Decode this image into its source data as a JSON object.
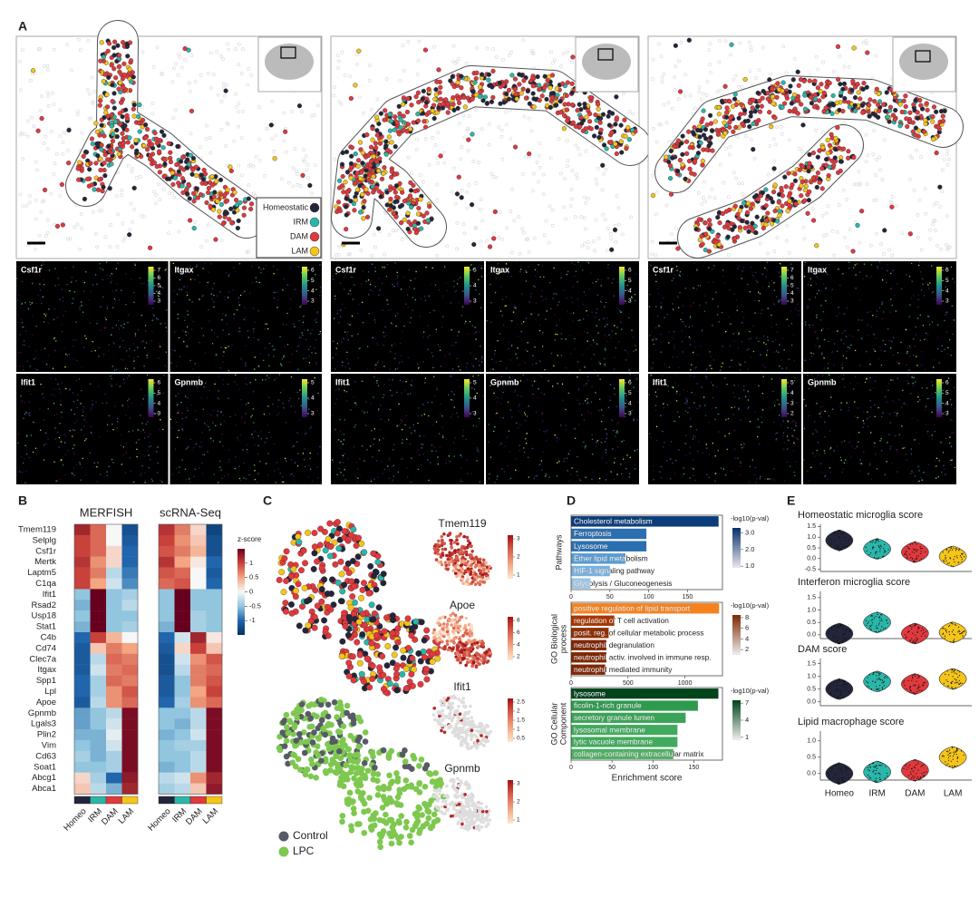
{
  "figure": {
    "panel_labels": [
      "A",
      "B",
      "C",
      "D",
      "E"
    ]
  },
  "panel_a": {
    "legend": [
      {
        "name": "Homeostatic",
        "color": "#23263a"
      },
      {
        "name": "IRM",
        "color": "#2ab7a9"
      },
      {
        "name": "DAM",
        "color": "#e0393e"
      },
      {
        "name": "LAM",
        "color": "#f5c518"
      }
    ],
    "gene_maps": [
      {
        "gene": "Csf1r",
        "ticks": [
          7,
          6,
          5,
          4,
          3
        ]
      },
      {
        "gene": "Itgax",
        "ticks": [
          6,
          5,
          4,
          3
        ]
      },
      {
        "gene": "Ifit1",
        "ticks": [
          6,
          5,
          4,
          3
        ]
      },
      {
        "gene": "Gpnmb",
        "ticks": [
          5,
          4,
          3
        ]
      },
      {
        "gene": "Csf1r",
        "ticks": [
          5,
          4,
          3
        ]
      },
      {
        "gene": "Itgax",
        "ticks": [
          6,
          5,
          4,
          3
        ]
      },
      {
        "gene": "Ifit1",
        "ticks": [
          5,
          4,
          3
        ]
      },
      {
        "gene": "Gpnmb",
        "ticks": [
          6,
          5,
          4,
          3
        ]
      },
      {
        "gene": "Csf1r",
        "ticks": [
          7,
          6,
          5,
          4,
          3
        ]
      },
      {
        "gene": "Itgax",
        "ticks": [
          6,
          5,
          4,
          3
        ]
      },
      {
        "gene": "Ifit1",
        "ticks": [
          5,
          4,
          3,
          2
        ]
      },
      {
        "gene": "Gpnmb",
        "ticks": [
          6,
          5,
          4,
          3
        ]
      }
    ]
  },
  "panel_b": {
    "titles": [
      "MERFISH",
      "scRNA-Seq"
    ],
    "genes": [
      "Tmem119",
      "Selplg",
      "Csf1r",
      "Mertk",
      "Laptm5",
      "C1qa",
      "Ifit1",
      "Rsad2",
      "Usp18",
      "Stat1",
      "C4b",
      "Cd74",
      "Clec7a",
      "Itgax",
      "Spp1",
      "Lpl",
      "Apoe",
      "Gpnmb",
      "Lgals3",
      "Plin2",
      "Vim",
      "Cd63",
      "Soat1",
      "Abcg1",
      "Abca1"
    ],
    "columns": [
      "Homeo",
      "IRM",
      "DAM",
      "LAM"
    ],
    "column_colors": [
      "#23263a",
      "#2ab7a9",
      "#e0393e",
      "#f5c518"
    ],
    "colorbar": {
      "title": "z-score",
      "lim": [
        -1.5,
        1.5
      ],
      "ticks": [
        1,
        0.5,
        0,
        -0.5,
        -1
      ]
    },
    "matrices": [
      [
        [
          1.2,
          0.8,
          0.0,
          -1.2
        ],
        [
          1.0,
          0.8,
          0.0,
          -1.1
        ],
        [
          1.0,
          0.8,
          0.2,
          -1.0
        ],
        [
          1.1,
          0.6,
          0.2,
          -1.0
        ],
        [
          1.0,
          0.7,
          -0.3,
          -0.9
        ],
        [
          1.0,
          0.5,
          -0.2,
          -0.8
        ],
        [
          -0.5,
          1.5,
          -0.5,
          -0.4
        ],
        [
          -0.6,
          1.5,
          -0.5,
          -0.3
        ],
        [
          -0.5,
          1.5,
          -0.5,
          -0.5
        ],
        [
          -0.6,
          1.5,
          -0.5,
          -0.4
        ],
        [
          -1.0,
          1.0,
          0.4,
          0.0
        ],
        [
          -1.1,
          0.3,
          0.7,
          0.5
        ],
        [
          -1.1,
          -0.3,
          0.8,
          0.7
        ],
        [
          -1.1,
          -0.2,
          0.7,
          0.8
        ],
        [
          -1.0,
          -0.4,
          0.8,
          0.7
        ],
        [
          -1.0,
          -0.4,
          0.6,
          0.9
        ],
        [
          -1.1,
          -0.3,
          0.6,
          0.8
        ],
        [
          -0.7,
          -0.5,
          -0.3,
          1.4
        ],
        [
          -0.7,
          -0.5,
          -0.2,
          1.4
        ],
        [
          -0.6,
          -0.6,
          -0.1,
          1.4
        ],
        [
          -0.5,
          -0.6,
          -0.2,
          1.4
        ],
        [
          -0.4,
          -0.6,
          -0.4,
          1.4
        ],
        [
          -0.5,
          -0.5,
          -0.4,
          1.4
        ],
        [
          0.2,
          -0.4,
          -1.0,
          1.3
        ],
        [
          0.3,
          -0.3,
          -0.6,
          1.2
        ]
      ],
      [
        [
          1.1,
          0.7,
          0.2,
          -1.3
        ],
        [
          1.0,
          0.6,
          0.3,
          -1.2
        ],
        [
          0.9,
          0.7,
          0.4,
          -1.2
        ],
        [
          1.1,
          0.5,
          0.1,
          -1.0
        ],
        [
          0.9,
          0.8,
          0.0,
          -1.1
        ],
        [
          0.8,
          0.9,
          0.0,
          -1.0
        ],
        [
          -0.5,
          1.5,
          -0.5,
          -0.5
        ],
        [
          -0.5,
          1.5,
          -0.5,
          -0.5
        ],
        [
          -0.5,
          1.5,
          -0.4,
          -0.5
        ],
        [
          -0.6,
          1.5,
          -0.4,
          -0.5
        ],
        [
          -1.0,
          -0.2,
          1.2,
          0.1
        ],
        [
          -1.1,
          0.2,
          1.0,
          0.3
        ],
        [
          -1.2,
          -0.2,
          0.6,
          0.9
        ],
        [
          -1.2,
          -0.3,
          0.7,
          0.8
        ],
        [
          -1.1,
          -0.5,
          0.7,
          0.9
        ],
        [
          -1.1,
          -0.5,
          0.5,
          1.0
        ],
        [
          -1.0,
          -0.4,
          0.6,
          0.8
        ],
        [
          -0.5,
          -0.5,
          -0.3,
          1.4
        ],
        [
          -0.5,
          -0.6,
          -0.3,
          1.4
        ],
        [
          -0.6,
          -0.5,
          -0.2,
          1.4
        ],
        [
          -0.5,
          -0.4,
          -0.4,
          1.4
        ],
        [
          -0.5,
          -0.5,
          -0.3,
          1.4
        ],
        [
          -0.6,
          -0.5,
          -0.3,
          1.4
        ],
        [
          -0.3,
          -0.2,
          0.6,
          1.2
        ],
        [
          -0.4,
          -0.3,
          0.3,
          1.3
        ]
      ]
    ]
  },
  "panel_c": {
    "legend": [
      {
        "name": "Control",
        "color": "#565b66"
      },
      {
        "name": "LPC",
        "color": "#7ec850"
      }
    ],
    "genes": [
      {
        "name": "Tmem119",
        "ticks": [
          3,
          2,
          1
        ]
      },
      {
        "name": "Apoe",
        "ticks": [
          8,
          6,
          4,
          2
        ]
      },
      {
        "name": "Ifit1",
        "ticks": [
          2.5,
          2,
          1.5,
          1,
          0.5
        ]
      },
      {
        "name": "Gpnmb",
        "ticks": [
          3,
          2,
          1
        ]
      }
    ]
  },
  "chart_data": [
    {
      "type": "bar",
      "orientation": "horizontal",
      "ylabel": [
        "Pathways"
      ],
      "categories": [
        "Cholesterol metabolism",
        "Ferroptosis",
        "Lysosome",
        "Ether lipid metabolism",
        "HIF-1 signaling pathway",
        "Glycolysis / Gluconeogenesis"
      ],
      "values": [
        190,
        97,
        97,
        70,
        50,
        25
      ],
      "colors": [
        "#0b3d7a",
        "#2c6fb0",
        "#2c6fb0",
        "#5a9bd0",
        "#7bb0db",
        "#9cc4e4"
      ],
      "xlim": [
        0,
        195
      ],
      "xticks": [
        0,
        50,
        100,
        150
      ],
      "colorbar": {
        "title": "-log10(p-val)",
        "lim": [
          0.9,
          3.3
        ],
        "colors": [
          "#e8e8ee",
          "#08306b"
        ],
        "ticks": [
          {
            "value": 3,
            "label": "3.0"
          },
          {
            "value": 2,
            "label": "2.0"
          },
          {
            "value": 1,
            "label": "1.0"
          }
        ]
      }
    },
    {
      "type": "bar",
      "orientation": "horizontal",
      "ylabel": [
        "GO Biological",
        "process"
      ],
      "categories": [
        "positive regulation of lipid transport",
        "regulation of T cell activation",
        "posit. reg. of cellular metabolic process",
        "neutrophil degranulation",
        "neutrophil activ. involved in immune resp.",
        "neutrophil mediated immunity"
      ],
      "values": [
        1300,
        380,
        330,
        310,
        310,
        300
      ],
      "colors": [
        "#f5821f",
        "#a63603",
        "#8f3005",
        "#7f2704",
        "#7f2704",
        "#7f2704"
      ],
      "xlim": [
        0,
        1330
      ],
      "xticks": [
        0,
        500,
        1000
      ],
      "colorbar": {
        "title": "-log10(p-val)",
        "lim": [
          1,
          8.5
        ],
        "colors": [
          "#eeeeee",
          "#7f2704"
        ],
        "ticks": [
          8,
          6,
          4,
          2
        ]
      }
    },
    {
      "type": "bar",
      "orientation": "horizontal",
      "ylabel": [
        "GO Cellular",
        "Component"
      ],
      "xlabel": "Enrichment score",
      "categories": [
        "lysosome",
        "ficolin-1-rich granule",
        "secretory granule lumen",
        "lysosomal membrane",
        "lytic vacuole membrane",
        "collagen-containing extracellular matrix"
      ],
      "values": [
        180,
        155,
        140,
        130,
        130,
        125
      ],
      "colors": [
        "#00441b",
        "#2e9a4e",
        "#3aa357",
        "#41ab5d",
        "#41ab5d",
        "#4daf62"
      ],
      "xlim": [
        0,
        185
      ],
      "xticks": [
        0,
        50,
        100,
        150
      ],
      "colorbar": {
        "title": "-log10(p-val)",
        "lim": [
          0.5,
          7.5
        ],
        "colors": [
          "#eeeeee",
          "#00441b"
        ],
        "ticks": [
          7,
          4,
          1
        ]
      }
    },
    {
      "type": "violin",
      "title": "Homeostatic microglia score",
      "values": [
        0.85,
        0.45,
        0.3,
        0.1
      ],
      "colors": [
        "#23263a",
        "#2ab7a9",
        "#e0393e",
        "#f5c518"
      ],
      "ylim": [
        -0.6,
        1.6
      ],
      "yticks": [
        1.5,
        {
          "value": 1,
          "label": "1.0"
        },
        0.5,
        {
          "value": 0,
          "label": "0.0"
        },
        -0.5
      ]
    },
    {
      "type": "violin",
      "title": "Interferon microglia score",
      "values": [
        0.05,
        0.5,
        0.05,
        0.1
      ],
      "colors": [
        "#23263a",
        "#2ab7a9",
        "#e0393e",
        "#f5c518"
      ],
      "ylim": [
        -0.15,
        1.75
      ],
      "yticks": [
        1.5,
        {
          "value": 1,
          "label": "1.0"
        },
        0.5,
        {
          "value": 0,
          "label": "0.0"
        }
      ]
    },
    {
      "type": "violin",
      "title": "DAM score",
      "values": [
        0.5,
        0.8,
        0.7,
        0.9
      ],
      "colors": [
        "#23263a",
        "#2ab7a9",
        "#e0393e",
        "#f5c518"
      ],
      "ylim": [
        -0.15,
        1.7
      ],
      "yticks": [
        1.5,
        {
          "value": 1,
          "label": "1.0"
        },
        0.5,
        {
          "value": 0,
          "label": "0.0"
        }
      ]
    },
    {
      "type": "violin",
      "title": "Lipid macrophage score",
      "values": [
        0.0,
        0.05,
        0.1,
        0.5
      ],
      "colors": [
        "#23263a",
        "#2ab7a9",
        "#e0393e",
        "#f5c518"
      ],
      "ylim": [
        -0.2,
        1.3
      ],
      "yticks": [
        {
          "value": 1,
          "label": "1.0"
        },
        0.5,
        {
          "value": 0,
          "label": "0.0"
        }
      ],
      "categories": [
        "Homeo",
        "IRM",
        "DAM",
        "LAM"
      ]
    }
  ]
}
